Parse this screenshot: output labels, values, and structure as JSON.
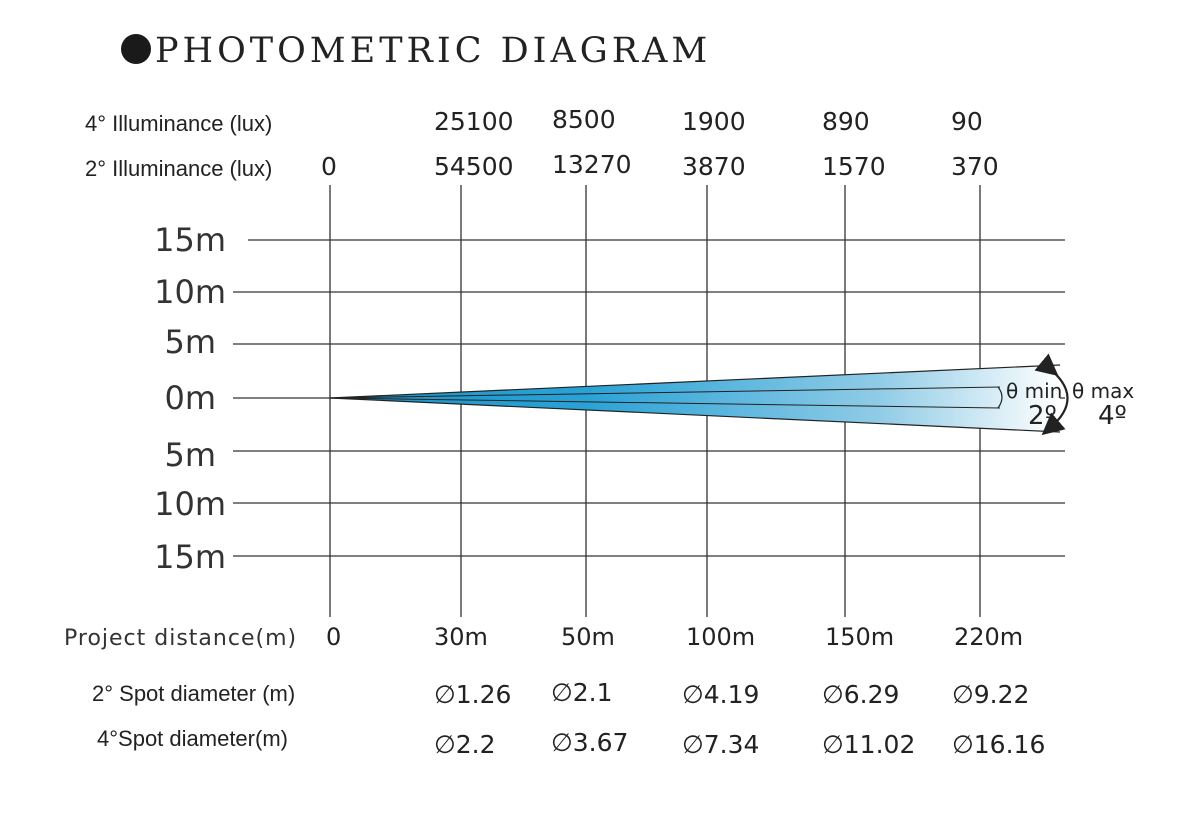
{
  "title": "PHOTOMETRIC DIAGRAM",
  "rows": {
    "illum_4_label": "4° Illuminance (lux)",
    "illum_2_label": "2° Illuminance (lux)",
    "project_label": "Project distance(m)",
    "spot_2_label": "2° Spot diameter (m)",
    "spot_4_label": "4°Spot diameter(m)"
  },
  "chart_data": {
    "type": "table",
    "distances": [
      "0",
      "30m",
      "50m",
      "100m",
      "150m",
      "220m"
    ],
    "illuminance_4deg": [
      "25100",
      "8500",
      "1900",
      "890",
      "90"
    ],
    "illuminance_2deg": [
      "0",
      "54500",
      "13270",
      "3870",
      "1570",
      "370"
    ],
    "spot_diameter_2deg": [
      "∅1.26",
      "∅2.1",
      "∅4.19",
      "∅6.29",
      "∅9.22"
    ],
    "spot_diameter_4deg": [
      "∅2.2",
      "∅3.67",
      "∅7.34",
      "∅11.02",
      "∅16.16"
    ],
    "y_axis_labels": [
      "15m",
      "10m",
      "5m",
      "0m",
      "5m",
      "10m",
      "15m"
    ]
  },
  "beam": {
    "theta_min": "θ min",
    "theta_max": "θ max",
    "angle_min": "2º",
    "angle_max": "4º",
    "color_near": "#1a93c8",
    "color_far": "#ffffff"
  }
}
